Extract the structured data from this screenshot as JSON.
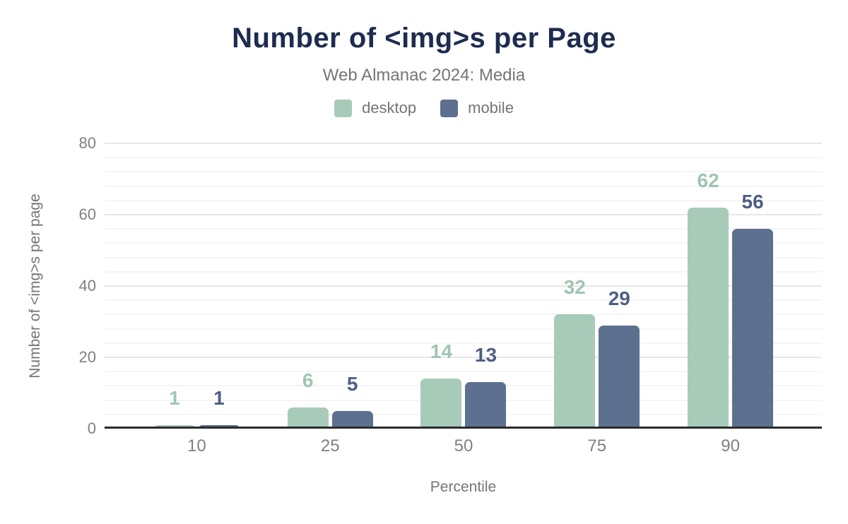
{
  "chart_data": {
    "type": "bar",
    "title": "Number of <img>s per Page",
    "subtitle": "Web Almanac 2024: Media",
    "xlabel": "Percentile",
    "ylabel": "Number of <img>s per page",
    "categories": [
      "10",
      "25",
      "50",
      "75",
      "90"
    ],
    "series": [
      {
        "name": "desktop",
        "values": [
          1,
          6,
          14,
          32,
          62
        ],
        "color": "#a8cab9",
        "label_color": "#9fc5b1"
      },
      {
        "name": "mobile",
        "values": [
          1,
          5,
          13,
          29,
          56
        ],
        "color": "#5e7090",
        "label_color": "#4e5f85"
      }
    ],
    "ylim": [
      0,
      80
    ],
    "yticks": [
      0,
      20,
      40,
      60,
      80
    ],
    "minor_grid_step": 4,
    "legend_position": "top",
    "grid": true
  },
  "colors": {
    "title": "#1d2c4f",
    "subtitle": "#757575",
    "legend_text": "#757575",
    "axis_text": "#808080",
    "axis_title_text": "#757575",
    "axis_line": "#2b2b2b",
    "grid_major": "#e7e7e7",
    "grid_minor": "#f5f5f5",
    "background": "#ffffff"
  }
}
